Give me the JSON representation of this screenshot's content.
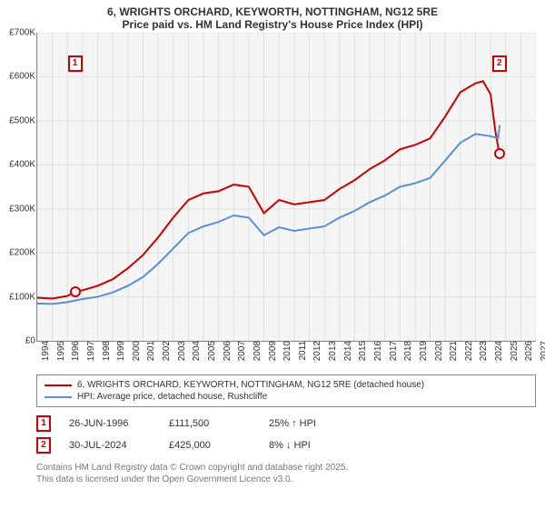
{
  "title": {
    "line1": "6, WRIGHTS ORCHARD, KEYWORTH, NOTTINGHAM, NG12 5RE",
    "line2": "Price paid vs. HM Land Registry's House Price Index (HPI)",
    "fontsize": 12
  },
  "chart": {
    "type": "line",
    "background_color": "#f5f5f5",
    "grid_color": "#e0e0e0",
    "axis_color": "#888888",
    "xlim": [
      1994,
      2027
    ],
    "ylim": [
      0,
      700000
    ],
    "yticks": [
      0,
      100000,
      200000,
      300000,
      400000,
      500000,
      600000,
      700000
    ],
    "ytick_labels": [
      "£0",
      "£100K",
      "£200K",
      "£300K",
      "£400K",
      "£500K",
      "£600K",
      "£700K"
    ],
    "xticks": [
      1994,
      1995,
      1996,
      1997,
      1998,
      1999,
      2000,
      2001,
      2002,
      2003,
      2004,
      2005,
      2006,
      2007,
      2008,
      2009,
      2010,
      2011,
      2012,
      2013,
      2014,
      2015,
      2016,
      2017,
      2018,
      2019,
      2020,
      2021,
      2022,
      2023,
      2024,
      2025,
      2026,
      2027
    ],
    "series": [
      {
        "name": "6, WRIGHTS ORCHARD, KEYWORTH, NOTTINGHAM, NG12 5RE (detached house)",
        "color": "#cc0000",
        "line_width": 2,
        "data": [
          [
            1994,
            98000
          ],
          [
            1995,
            96000
          ],
          [
            1996,
            102000
          ],
          [
            1996.5,
            111500
          ],
          [
            1997,
            115000
          ],
          [
            1998,
            125000
          ],
          [
            1999,
            140000
          ],
          [
            2000,
            165000
          ],
          [
            2001,
            195000
          ],
          [
            2002,
            235000
          ],
          [
            2003,
            280000
          ],
          [
            2004,
            320000
          ],
          [
            2005,
            335000
          ],
          [
            2006,
            340000
          ],
          [
            2007,
            355000
          ],
          [
            2008,
            350000
          ],
          [
            2009,
            290000
          ],
          [
            2010,
            320000
          ],
          [
            2011,
            310000
          ],
          [
            2012,
            315000
          ],
          [
            2013,
            320000
          ],
          [
            2014,
            345000
          ],
          [
            2015,
            365000
          ],
          [
            2016,
            390000
          ],
          [
            2017,
            410000
          ],
          [
            2018,
            435000
          ],
          [
            2019,
            445000
          ],
          [
            2020,
            460000
          ],
          [
            2021,
            510000
          ],
          [
            2022,
            565000
          ],
          [
            2023,
            585000
          ],
          [
            2023.5,
            590000
          ],
          [
            2024,
            560000
          ],
          [
            2024.3,
            480000
          ],
          [
            2024.58,
            425000
          ]
        ]
      },
      {
        "name": "HPI: Average price, detached house, Rushcliffe",
        "color": "#5b8fd6",
        "line_width": 2,
        "data": [
          [
            1994,
            85000
          ],
          [
            1995,
            84000
          ],
          [
            1996,
            88000
          ],
          [
            1997,
            95000
          ],
          [
            1998,
            100000
          ],
          [
            1999,
            110000
          ],
          [
            2000,
            125000
          ],
          [
            2001,
            145000
          ],
          [
            2002,
            175000
          ],
          [
            2003,
            210000
          ],
          [
            2004,
            245000
          ],
          [
            2005,
            260000
          ],
          [
            2006,
            270000
          ],
          [
            2007,
            285000
          ],
          [
            2008,
            280000
          ],
          [
            2009,
            240000
          ],
          [
            2010,
            258000
          ],
          [
            2011,
            250000
          ],
          [
            2012,
            255000
          ],
          [
            2013,
            260000
          ],
          [
            2014,
            280000
          ],
          [
            2015,
            295000
          ],
          [
            2016,
            315000
          ],
          [
            2017,
            330000
          ],
          [
            2018,
            350000
          ],
          [
            2019,
            358000
          ],
          [
            2020,
            370000
          ],
          [
            2021,
            410000
          ],
          [
            2022,
            450000
          ],
          [
            2023,
            470000
          ],
          [
            2024,
            465000
          ],
          [
            2024.5,
            460000
          ],
          [
            2024.6,
            490000
          ]
        ]
      }
    ],
    "markers": [
      {
        "num": "1",
        "x": 1996.5,
        "y_box": 630000,
        "y_dot": 111500
      },
      {
        "num": "2",
        "x": 2024.58,
        "y_box": 630000,
        "y_dot": 425000
      }
    ]
  },
  "legend": {
    "items": [
      {
        "color": "#cc0000",
        "label": "6, WRIGHTS ORCHARD, KEYWORTH, NOTTINGHAM, NG12 5RE (detached house)"
      },
      {
        "color": "#5b8fd6",
        "label": "HPI: Average price, detached house, Rushcliffe"
      }
    ]
  },
  "transactions": [
    {
      "num": "1",
      "date": "26-JUN-1996",
      "price": "£111,500",
      "delta": "25% ↑ HPI"
    },
    {
      "num": "2",
      "date": "30-JUL-2024",
      "price": "£425,000",
      "delta": "8% ↓ HPI"
    }
  ],
  "footer": {
    "line1": "Contains HM Land Registry data © Crown copyright and database right 2025.",
    "line2": "This data is licensed under the Open Government Licence v3.0."
  }
}
